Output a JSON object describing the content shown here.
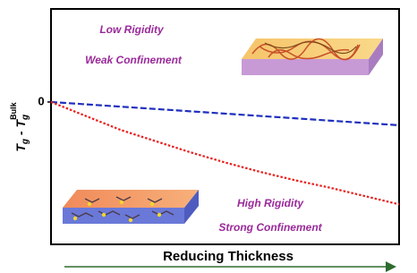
{
  "chart_data": {
    "type": "line",
    "x_label": "Reducing Thickness",
    "y_label": [
      "T",
      "g",
      " - T",
      "g",
      "Bulk"
    ],
    "annotations": [
      "Low Rigidity",
      "Weak Confinement",
      "High Rigidity",
      "Strong Confinement"
    ],
    "x": [
      0,
      1,
      2,
      3,
      4,
      5,
      6,
      7,
      8,
      9,
      10
    ],
    "xlim": [
      0,
      10
    ],
    "ylim": [
      -15.3,
      10
    ],
    "yticks": [
      0
    ],
    "series": [
      {
        "color": "#1f2fbf",
        "dash": "dashed",
        "values": [
          0,
          -0.25,
          -0.5,
          -0.75,
          -1.0,
          -1.25,
          -1.5,
          -1.75,
          -2.0,
          -2.25,
          -2.5
        ]
      },
      {
        "color": "#e8201e",
        "dash": "dotted",
        "values": [
          0,
          -1.5,
          -3.0,
          -4.2,
          -5.4,
          -6.5,
          -7.5,
          -8.4,
          -9.2,
          -10.1,
          -11.0
        ]
      }
    ]
  }
}
